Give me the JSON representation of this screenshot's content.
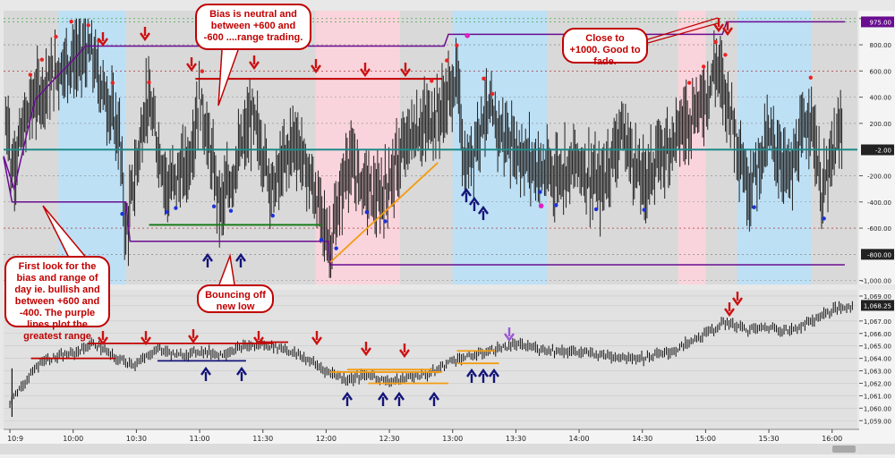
{
  "chart_data": [
    {
      "type": "bar",
      "description_name": "upper-oscillator-panel",
      "y_ticks": [
        "1,000.00",
        "975.00",
        "800.00",
        "600.00",
        "400.00",
        "200.00",
        "-2.00",
        "-200.00",
        "-400.00",
        "-600.00",
        "-800.00",
        "-1,000.00"
      ],
      "y_tick_values": [
        1000,
        975,
        800,
        600,
        400,
        200,
        -2,
        -200,
        -400,
        -600,
        -800,
        -1000
      ],
      "highlighted_ticks": {
        "975.00": "#6a0d91",
        "-2.00": "#222222",
        "-800.00": "#222222"
      },
      "ylim": [
        -1030,
        1060
      ],
      "reference_lines": {
        "zero_line": 0,
        "range_levels": [
          540,
          -575
        ],
        "support_level": -575,
        "bias_top": 975,
        "bias_bottom": -880
      },
      "background_bands": [
        {
          "from_time": "09:53",
          "to_time": "10:25",
          "color": "#bde0f5"
        },
        {
          "from_time": "11:55",
          "to_time": "12:35",
          "color": "#fad4dc"
        },
        {
          "from_time": "13:00",
          "to_time": "13:45",
          "color": "#bde0f5"
        },
        {
          "from_time": "14:47",
          "to_time": "15:00",
          "color": "#fad4dc"
        },
        {
          "from_time": "15:15",
          "to_time": "15:50",
          "color": "#bde0f5"
        }
      ]
    },
    {
      "type": "line",
      "description_name": "lower-price-panel",
      "y_ticks": [
        "1,069.00",
        "1,068.25",
        "1,067.00",
        "1,066.00",
        "1,065.00",
        "1,064.00",
        "1,063.00",
        "1,062.00",
        "1,061.00",
        "1,060.00",
        "1,059.00"
      ],
      "y_tick_values": [
        1069,
        1068.25,
        1067,
        1066,
        1065,
        1064,
        1063,
        1062,
        1061,
        1060,
        1059
      ],
      "highlighted_ticks": {
        "1,068.25": "#222222"
      },
      "ylim": [
        1058.3,
        1069.5
      ],
      "x": [
        "09:30",
        "09:45",
        "10:00",
        "10:10",
        "10:20",
        "10:30",
        "10:40",
        "10:50",
        "11:00",
        "11:10",
        "11:20",
        "11:30",
        "11:40",
        "11:50",
        "12:00",
        "12:10",
        "12:20",
        "12:30",
        "12:40",
        "12:50",
        "13:00",
        "13:10",
        "13:20",
        "13:30",
        "13:40",
        "13:50",
        "14:00",
        "14:15",
        "14:30",
        "14:45",
        "15:00",
        "15:10",
        "15:20",
        "15:30",
        "15:40",
        "15:50",
        "16:00",
        "16:10"
      ],
      "values": [
        1060.5,
        1063.8,
        1064.4,
        1065.2,
        1064.0,
        1063.5,
        1064.8,
        1064.2,
        1064.6,
        1064.3,
        1064.9,
        1065.1,
        1064.8,
        1064.0,
        1063.0,
        1062.3,
        1062.7,
        1062.1,
        1062.5,
        1062.8,
        1063.9,
        1064.2,
        1064.7,
        1065.1,
        1064.8,
        1064.6,
        1064.5,
        1064.2,
        1064.0,
        1064.6,
        1066.0,
        1066.9,
        1066.3,
        1066.5,
        1066.2,
        1067.0,
        1067.9,
        1068.25
      ]
    }
  ],
  "x_axis": {
    "ticks": [
      "10:9",
      "10:00",
      "10:30",
      "11:00",
      "11:30",
      "12:00",
      "12:30",
      "13:00",
      "13:30",
      "14:00",
      "14:30",
      "15:00",
      "15:30",
      "16:00"
    ],
    "tick_times": [
      "09:30",
      "10:00",
      "10:30",
      "11:00",
      "11:30",
      "12:00",
      "12:30",
      "13:00",
      "13:30",
      "14:00",
      "14:30",
      "15:00",
      "15:30",
      "16:00"
    ]
  },
  "callouts": {
    "bias": "Bias is neutral and between +600 and -600 ....range trading.",
    "close": "Close to +1000. Good to fade.",
    "first": "First look for the bias and range of day ie. bullish and between +600 and -400. The purple lines plot the greatest range",
    "bounce": "Bouncing off new low"
  },
  "colors": {
    "panel_bg": "#d9d9d9",
    "blue_band": "#bde0f5",
    "pink_band": "#fad4dc",
    "purple_line": "#6a0d91",
    "teal_zero": "#1f8a8a",
    "red_arrow": "#cc1111",
    "navy_arrow": "#14157a",
    "orange_line": "#f39c12",
    "green_line": "#1a7a1a",
    "red_line": "#c00000",
    "red_dot": "#ee2222",
    "blue_dot": "#1a33dd",
    "magenta_dot": "#e020c0"
  }
}
